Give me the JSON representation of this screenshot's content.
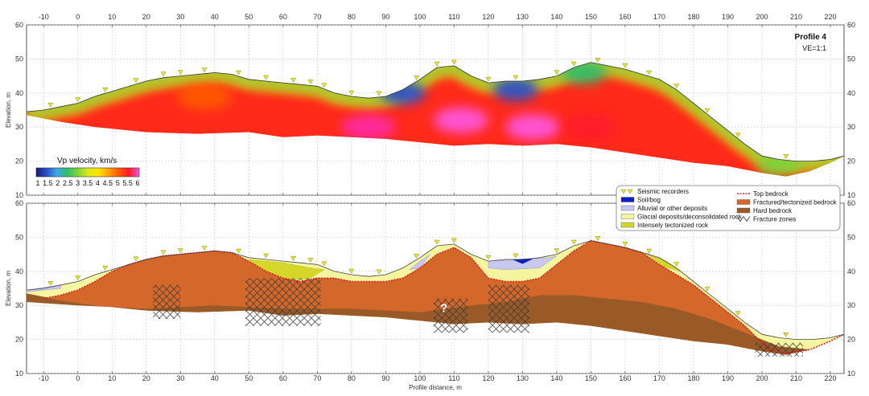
{
  "chart_data": [
    {
      "type": "heatmap",
      "panel": "top",
      "title": "Profile 4",
      "subtitle": "VE=1:1",
      "xlabel": "",
      "ylabel": "Elevation, m",
      "xlim": [
        -15,
        224
      ],
      "ylim": [
        10,
        60
      ],
      "xticks": [
        -10,
        0,
        10,
        20,
        30,
        40,
        50,
        60,
        70,
        80,
        90,
        100,
        110,
        120,
        130,
        140,
        150,
        160,
        170,
        180,
        190,
        200,
        210,
        220
      ],
      "yticks": [
        10,
        20,
        30,
        40,
        50,
        60
      ],
      "grid": true,
      "colorbar": {
        "title": "Vp velocity, km/s",
        "ticks": [
          "1",
          "1.5",
          "2",
          "2.5",
          "3",
          "3.5",
          "4",
          "4.5",
          "5",
          "5.5",
          "6"
        ],
        "colors": [
          "#1a1a7a",
          "#2b50c8",
          "#3fa6e8",
          "#2ebd6a",
          "#7fd23a",
          "#d9e81e",
          "#ffe600",
          "#ffa000",
          "#ff5a00",
          "#ff1a2a",
          "#ff2aa0",
          "#ff55dd"
        ]
      },
      "surface": [
        [
          -15,
          34.5
        ],
        [
          -10,
          35
        ],
        [
          -5,
          36
        ],
        [
          0,
          37
        ],
        [
          5,
          39
        ],
        [
          10,
          40.5
        ],
        [
          15,
          42
        ],
        [
          20,
          43.5
        ],
        [
          25,
          44.5
        ],
        [
          30,
          45
        ],
        [
          35,
          45.5
        ],
        [
          40,
          46
        ],
        [
          45,
          45.5
        ],
        [
          50,
          44
        ],
        [
          55,
          43.5
        ],
        [
          60,
          43
        ],
        [
          65,
          42.5
        ],
        [
          70,
          42
        ],
        [
          75,
          40
        ],
        [
          80,
          39
        ],
        [
          85,
          38.5
        ],
        [
          90,
          39
        ],
        [
          95,
          41
        ],
        [
          100,
          44
        ],
        [
          105,
          47.5
        ],
        [
          110,
          48
        ],
        [
          115,
          45
        ],
        [
          120,
          43
        ],
        [
          125,
          43.5
        ],
        [
          130,
          43.5
        ],
        [
          135,
          44
        ],
        [
          140,
          45
        ],
        [
          145,
          47.5
        ],
        [
          150,
          49
        ],
        [
          155,
          48
        ],
        [
          160,
          47
        ],
        [
          165,
          45.5
        ],
        [
          170,
          44
        ],
        [
          175,
          41
        ],
        [
          180,
          37
        ],
        [
          185,
          33
        ],
        [
          190,
          29
        ],
        [
          195,
          25
        ],
        [
          200,
          21.5
        ],
        [
          205,
          20.5
        ],
        [
          210,
          20
        ],
        [
          215,
          20
        ],
        [
          220,
          20.5
        ],
        [
          224,
          21.5
        ]
      ],
      "base": [
        [
          -15,
          33.5
        ],
        [
          -5,
          31.5
        ],
        [
          5,
          30
        ],
        [
          20,
          28.5
        ],
        [
          35,
          28
        ],
        [
          50,
          28.5
        ],
        [
          60,
          27
        ],
        [
          70,
          27.5
        ],
        [
          80,
          27
        ],
        [
          90,
          26.5
        ],
        [
          100,
          25.5
        ],
        [
          110,
          24.5
        ],
        [
          120,
          25
        ],
        [
          130,
          24.5
        ],
        [
          140,
          25
        ],
        [
          150,
          24
        ],
        [
          160,
          22.5
        ],
        [
          170,
          21
        ],
        [
          180,
          19.5
        ],
        [
          190,
          18.5
        ],
        [
          200,
          16.5
        ],
        [
          207,
          15.5
        ],
        [
          214,
          17
        ],
        [
          220,
          19.5
        ],
        [
          224,
          21.5
        ]
      ],
      "velocity_zones": [
        {
          "x": 95,
          "y": 40,
          "value": 1.5
        },
        {
          "x": 128,
          "y": 41,
          "value": 1.5
        },
        {
          "x": 148,
          "y": 46,
          "value": 2.5
        },
        {
          "x": 37,
          "y": 39,
          "value": 4.5
        },
        {
          "x": 112,
          "y": 32,
          "value": 6
        },
        {
          "x": 133,
          "y": 30,
          "value": 6
        },
        {
          "x": 85,
          "y": 30,
          "value": 5.5
        },
        {
          "x": 150,
          "y": 30,
          "value": 5
        },
        {
          "x": 205,
          "y": 19,
          "value": 3
        }
      ]
    },
    {
      "type": "area",
      "panel": "bottom",
      "xlabel": "Profile distance, m",
      "ylabel": "Elevation, m",
      "xlim": [
        -15,
        224
      ],
      "ylim": [
        10,
        60
      ],
      "xticks": [
        -10,
        0,
        10,
        20,
        30,
        40,
        50,
        60,
        70,
        80,
        90,
        100,
        110,
        120,
        130,
        140,
        150,
        160,
        170,
        180,
        190,
        200,
        210,
        220
      ],
      "yticks": [
        10,
        20,
        30,
        40,
        50,
        60
      ],
      "grid": true,
      "annotation": "?",
      "annotation_x": 107,
      "annotation_y": 28,
      "legend": {
        "placement": "top-right",
        "items": [
          {
            "label": "Seismic recorders",
            "kind": "marker",
            "color": "#e8e832"
          },
          {
            "label": "Soil/bog",
            "kind": "fill",
            "color": "#1020c0"
          },
          {
            "label": "Alluvial or other deposits",
            "kind": "fill",
            "color": "#c8c8f0"
          },
          {
            "label": "Glacial deposits/deconsolidated rock",
            "kind": "fill",
            "color": "#f5f5a0"
          },
          {
            "label": "Intensely tectonized rock",
            "kind": "fill",
            "color": "#d6d62a"
          },
          {
            "label": "Top bedrock",
            "kind": "dashed",
            "color": "#d02020"
          },
          {
            "label": "Fractured/tectonized bedrock",
            "kind": "fill",
            "color": "#d4672a"
          },
          {
            "label": "Hard bedrock",
            "kind": "fill",
            "color": "#9a5a28"
          },
          {
            "label": "Fracture zones",
            "kind": "hatch",
            "color": "#444444"
          }
        ]
      },
      "layers": [
        {
          "name": "Hard bedrock",
          "color": "#9a5a28",
          "top": [
            [
              -15,
              31
            ],
            [
              0,
              30
            ],
            [
              20,
              29
            ],
            [
              40,
              30
            ],
            [
              60,
              29
            ],
            [
              80,
              29
            ],
            [
              100,
              28
            ],
            [
              115,
              30
            ],
            [
              125,
              31
            ],
            [
              135,
              33
            ],
            [
              145,
              33
            ],
            [
              155,
              32
            ],
            [
              165,
              31
            ],
            [
              175,
              29
            ],
            [
              185,
              26
            ],
            [
              195,
              22
            ],
            [
              205,
              18
            ],
            [
              214,
              17
            ],
            [
              220,
              19.5
            ],
            [
              224,
              21.5
            ]
          ]
        },
        {
          "name": "Fractured/tectonized bedrock",
          "color": "#d4672a",
          "top": [
            [
              -10,
              32
            ],
            [
              -5,
              33
            ],
            [
              0,
              34.5
            ],
            [
              5,
              37
            ],
            [
              10,
              40
            ],
            [
              15,
              42
            ],
            [
              20,
              43.5
            ],
            [
              25,
              44.5
            ],
            [
              30,
              45
            ],
            [
              35,
              45.5
            ],
            [
              40,
              46
            ],
            [
              45,
              45.5
            ],
            [
              50,
              43
            ],
            [
              55,
              40
            ],
            [
              60,
              38
            ],
            [
              65,
              37
            ],
            [
              70,
              38
            ],
            [
              75,
              38
            ],
            [
              80,
              37
            ],
            [
              85,
              37
            ],
            [
              90,
              37
            ],
            [
              95,
              38
            ],
            [
              100,
              41
            ],
            [
              105,
              45
            ],
            [
              110,
              47
            ],
            [
              115,
              44
            ],
            [
              120,
              38
            ],
            [
              125,
              37
            ],
            [
              130,
              37
            ],
            [
              135,
              38
            ],
            [
              140,
              42
            ],
            [
              145,
              46
            ],
            [
              150,
              49
            ],
            [
              155,
              48
            ],
            [
              160,
              47
            ],
            [
              165,
              45.5
            ],
            [
              170,
              42
            ],
            [
              175,
              39
            ],
            [
              180,
              36
            ],
            [
              185,
              32
            ],
            [
              190,
              28
            ],
            [
              195,
              24
            ],
            [
              198,
              21
            ],
            [
              202,
              17
            ],
            [
              207,
              16
            ],
            [
              214,
              17
            ],
            [
              220,
              19.5
            ],
            [
              224,
              21.5
            ]
          ]
        }
      ],
      "recorders_x": [
        -8,
        0,
        8,
        17,
        25,
        30,
        37,
        47,
        55,
        63,
        68,
        72,
        80,
        88,
        99,
        105,
        110,
        120,
        128,
        140,
        145,
        152,
        160,
        167,
        175,
        184,
        193,
        207
      ]
    }
  ]
}
